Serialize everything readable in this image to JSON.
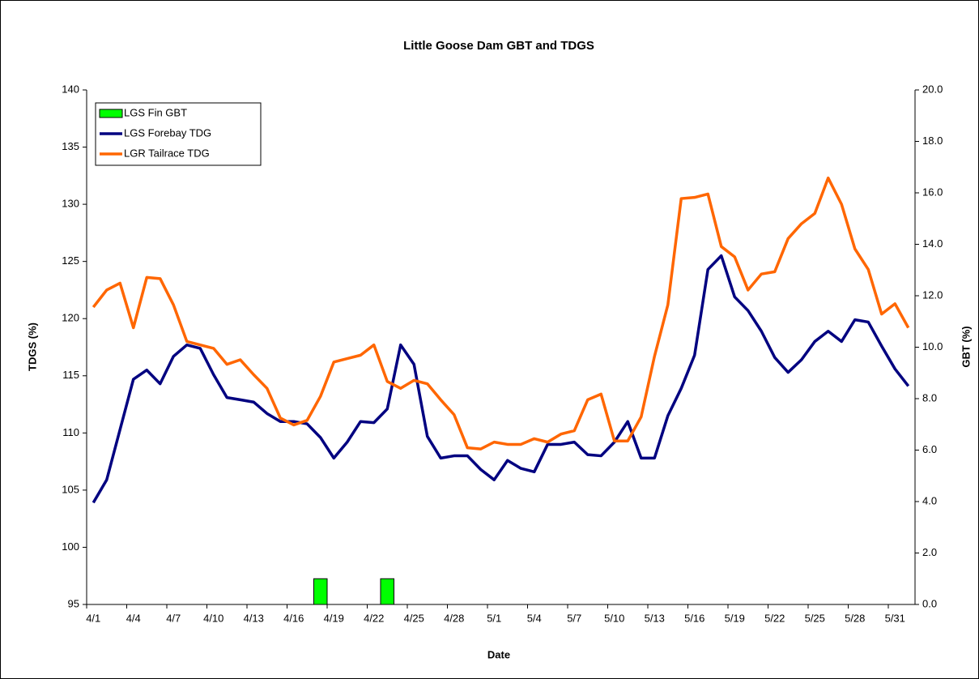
{
  "chart_data": {
    "type": "combo",
    "title": "Little Goose Dam GBT and TDGS",
    "x_label": "Date",
    "y_label": "TDGS (%)",
    "y2_label": "GBT (%)",
    "categories": [
      "4/1",
      null,
      null,
      "4/4",
      null,
      null,
      "4/7",
      null,
      null,
      "4/10",
      null,
      null,
      "4/13",
      null,
      null,
      "4/16",
      null,
      null,
      "4/19",
      null,
      null,
      "4/22",
      null,
      null,
      "4/25",
      null,
      null,
      "4/28",
      null,
      null,
      "5/1",
      null,
      null,
      "5/4",
      null,
      null,
      "5/7",
      null,
      null,
      "5/10",
      null,
      null,
      "5/13",
      null,
      null,
      "5/16",
      null,
      null,
      "5/19",
      null,
      null,
      "5/22",
      null,
      null,
      "5/25",
      null,
      null,
      "5/28",
      null,
      null,
      "5/31",
      null
    ],
    "ylim": [
      95,
      140
    ],
    "yticks": [
      95,
      100,
      105,
      110,
      115,
      120,
      125,
      130,
      135,
      140
    ],
    "y2lim": [
      0,
      20
    ],
    "y2ticks": [
      {
        "value": 0,
        "label": "0.0"
      },
      {
        "value": 2,
        "label": "2.0"
      },
      {
        "value": 4,
        "label": "4.0"
      },
      {
        "value": 6,
        "label": "6.0"
      },
      {
        "value": 8,
        "label": "8.0"
      },
      {
        "value": 10,
        "label": "10.0"
      },
      {
        "value": 12,
        "label": "12.0"
      },
      {
        "value": 14,
        "label": "14.0"
      },
      {
        "value": 16,
        "label": "16.0"
      },
      {
        "value": 18,
        "label": "18.0"
      },
      {
        "value": 20,
        "label": "20.0"
      }
    ],
    "legend": "top-left",
    "series": [
      {
        "name": "LGS Fin GBT",
        "type": "bar",
        "axis": "y2",
        "color": "#00ff00",
        "values": [
          0,
          0,
          0,
          0,
          0,
          0,
          0,
          0,
          0,
          0,
          0,
          0,
          0,
          0,
          0,
          0,
          0,
          1,
          0,
          0,
          0,
          0,
          1,
          0,
          0,
          0,
          0,
          0,
          0,
          0,
          0,
          0,
          0,
          0,
          0,
          0,
          0,
          0,
          0,
          0,
          0,
          0,
          0,
          0,
          0,
          0,
          0,
          0,
          0,
          0,
          0,
          0,
          0,
          0,
          0,
          0,
          0,
          0,
          0,
          0,
          0,
          0
        ]
      },
      {
        "name": "LGS Forebay TDG",
        "type": "line",
        "color": "#000080",
        "values": [
          103.9,
          105.9,
          110.3,
          114.7,
          115.5,
          114.3,
          116.7,
          117.7,
          117.4,
          115.1,
          113.1,
          112.9,
          112.7,
          111.7,
          111.0,
          111.0,
          110.8,
          109.6,
          107.8,
          109.2,
          111.0,
          110.9,
          112.1,
          117.7,
          116.0,
          109.7,
          107.8,
          108.0,
          108.0,
          106.8,
          105.9,
          107.6,
          106.9,
          106.6,
          109.0,
          109.0,
          109.2,
          108.1,
          108.0,
          109.2,
          111.0,
          107.8,
          107.8,
          111.5,
          113.9,
          116.8,
          124.3,
          125.5,
          121.9,
          120.7,
          118.9,
          116.6,
          115.3,
          116.4,
          118.0,
          118.9,
          118.0,
          119.9,
          119.7,
          117.6,
          115.6,
          114.1
        ]
      },
      {
        "name": "LGR Tailrace TDG",
        "type": "line",
        "color": "#ff6600",
        "values": [
          121.0,
          122.5,
          123.1,
          119.2,
          123.6,
          123.5,
          121.2,
          118.0,
          117.7,
          117.4,
          116.0,
          116.4,
          115.1,
          113.9,
          111.3,
          110.7,
          111.1,
          113.2,
          116.2,
          116.5,
          116.8,
          117.7,
          114.5,
          113.9,
          114.6,
          114.3,
          112.9,
          111.6,
          108.7,
          108.6,
          109.2,
          109.0,
          109.0,
          109.5,
          109.2,
          109.9,
          110.2,
          112.9,
          113.4,
          109.3,
          109.3,
          111.4,
          116.7,
          121.2,
          130.5,
          130.6,
          130.9,
          126.3,
          125.4,
          122.5,
          123.9,
          124.1,
          127.0,
          128.3,
          129.2,
          132.3,
          130.0,
          126.1,
          124.3,
          120.4,
          121.3,
          119.2
        ]
      }
    ]
  }
}
